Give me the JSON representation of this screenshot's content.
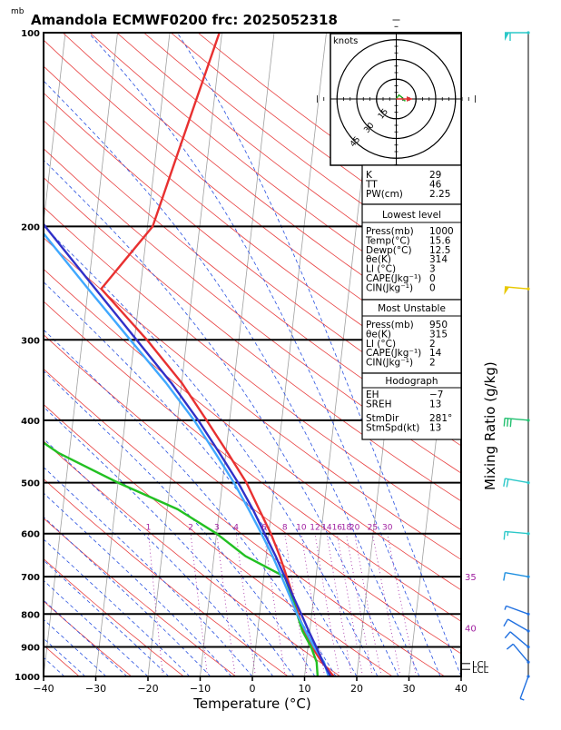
{
  "chart_data": {
    "type": "line",
    "title": "Amandola ECMWF0200  frc: 2025052318",
    "pressure_unit": "mb",
    "xlabel": "Temperature (°C)",
    "ylabel_right": "Mixing Ratio (g/kg)",
    "x_ticks": [
      "−40",
      "−30",
      "−20",
      "−10",
      "0",
      "10",
      "20",
      "30",
      "40"
    ],
    "x_tick_values": [
      -40,
      -30,
      -20,
      -10,
      0,
      10,
      20,
      30,
      40
    ],
    "xlim": [
      -40,
      40
    ],
    "y_ticks": [
      "100",
      "200",
      "300",
      "400",
      "500",
      "600",
      "700",
      "800",
      "900",
      "1000"
    ],
    "y_tick_values": [
      100,
      200,
      300,
      400,
      500,
      600,
      700,
      800,
      900,
      1000
    ],
    "ylim": [
      1000,
      100
    ],
    "y_scale": "log",
    "mixing_ratio_labels": [
      "1",
      "2",
      "3",
      "4",
      "6",
      "8",
      "10",
      "12",
      "14",
      "16",
      "18",
      "20",
      "25",
      "30"
    ],
    "mixing_ratio_values": [
      1,
      2,
      3,
      4,
      6,
      8,
      10,
      12,
      14,
      16,
      18,
      20,
      25,
      30
    ],
    "side_labels": [
      {
        "text": "35",
        "pressure": 700
      },
      {
        "text": "40",
        "pressure": 840
      }
    ],
    "lcl_labels": [
      "LCL",
      "LCL"
    ],
    "series": [
      {
        "key": "temperature",
        "color": "#e83030",
        "points": [
          [
            1000,
            15.6
          ],
          [
            950,
            13.0
          ],
          [
            900,
            10.8
          ],
          [
            850,
            9.0
          ],
          [
            800,
            7.4
          ],
          [
            750,
            6.0
          ],
          [
            700,
            4.4
          ],
          [
            650,
            2.6
          ],
          [
            600,
            0.4
          ],
          [
            550,
            -2.4
          ],
          [
            500,
            -5.4
          ],
          [
            450,
            -9.6
          ],
          [
            400,
            -14.4
          ],
          [
            350,
            -20.0
          ],
          [
            300,
            -27.6
          ],
          [
            250,
            -37.5
          ],
          [
            200,
            -29.0
          ],
          [
            150,
            -25.5
          ],
          [
            100,
            -20.5
          ]
        ]
      },
      {
        "key": "dewpoint",
        "color": "#22c022",
        "points": [
          [
            1000,
            12.5
          ],
          [
            950,
            12.0
          ],
          [
            900,
            10.6
          ],
          [
            850,
            8.6
          ],
          [
            800,
            7.2
          ],
          [
            750,
            5.8
          ],
          [
            700,
            4.0
          ],
          [
            650,
            -4.0
          ],
          [
            600,
            -10.0
          ],
          [
            550,
            -18.0
          ],
          [
            500,
            -30.0
          ],
          [
            450,
            -42.0
          ],
          [
            400,
            -52.0
          ],
          [
            350,
            -59.0
          ],
          [
            300,
            -66.0
          ],
          [
            250,
            -73.0
          ],
          [
            200,
            -80.0
          ],
          [
            150,
            -87.0
          ],
          [
            100,
            -94.0
          ]
        ]
      },
      {
        "key": "parcel_virtual",
        "color": "#40a8ff",
        "points": [
          [
            1000,
            14.6
          ],
          [
            950,
            13.4
          ],
          [
            900,
            11.2
          ],
          [
            850,
            9.2
          ],
          [
            800,
            7.2
          ],
          [
            750,
            5.4
          ],
          [
            700,
            3.4
          ],
          [
            650,
            1.2
          ],
          [
            600,
            -1.4
          ],
          [
            550,
            -4.4
          ],
          [
            500,
            -7.8
          ],
          [
            450,
            -12.0
          ],
          [
            400,
            -16.8
          ],
          [
            350,
            -23.0
          ],
          [
            300,
            -30.8
          ],
          [
            250,
            -40.0
          ],
          [
            200,
            -51.0
          ],
          [
            150,
            -63.0
          ],
          [
            100,
            -79.0
          ]
        ]
      },
      {
        "key": "parcel",
        "color": "#3030c8",
        "points": [
          [
            1000,
            15.0
          ],
          [
            950,
            13.2
          ],
          [
            900,
            11.6
          ],
          [
            850,
            9.8
          ],
          [
            800,
            8.0
          ],
          [
            750,
            6.0
          ],
          [
            700,
            4.0
          ],
          [
            650,
            1.8
          ],
          [
            600,
            -0.8
          ],
          [
            550,
            -3.6
          ],
          [
            500,
            -7.0
          ],
          [
            450,
            -11.2
          ],
          [
            400,
            -16.0
          ],
          [
            350,
            -22.0
          ],
          [
            300,
            -29.6
          ],
          [
            250,
            -38.6
          ],
          [
            200,
            -49.6
          ],
          [
            150,
            -62.0
          ],
          [
            100,
            -78.0
          ]
        ]
      }
    ],
    "hodograph": {
      "unit_label": "knots",
      "ring_labels": [
        "15",
        "30",
        "45"
      ],
      "ring_values": [
        15,
        30,
        45
      ],
      "trace": [
        [
          0.0,
          0.0
        ],
        [
          2.0,
          3.0
        ],
        [
          4.0,
          1.5
        ],
        [
          6.0,
          -1.0
        ],
        [
          7.0,
          -1.5
        ]
      ],
      "storm_motion": [
        5.5,
        0.0
      ]
    },
    "indices": [
      {
        "label": "K",
        "value": "29"
      },
      {
        "label": "TT",
        "value": "46"
      },
      {
        "label": "PW(cm)",
        "value": "2.25"
      }
    ],
    "lowest_level": {
      "header": "Lowest level",
      "rows": [
        {
          "label": "Press(mb)",
          "value": "1000"
        },
        {
          "label": "Temp(°C)",
          "value": "15.6"
        },
        {
          "label": "Dewp(°C)",
          "value": "12.5"
        },
        {
          "label": "θe(K)",
          "value": "314"
        },
        {
          "label": "LI (°C)",
          "value": "3"
        },
        {
          "label": "CAPE(Jkg⁻¹)",
          "value": "0"
        },
        {
          "label": "CIN(Jkg⁻¹)",
          "value": "0"
        }
      ]
    },
    "most_unstable": {
      "header": "Most Unstable",
      "rows": [
        {
          "label": "Press(mb)",
          "value": "950"
        },
        {
          "label": "θe(K)",
          "value": "315"
        },
        {
          "label": "LI (°C)",
          "value": "2"
        },
        {
          "label": "CAPE(Jkg⁻¹)",
          "value": "14"
        },
        {
          "label": "CIN(Jkg⁻¹)",
          "value": "2"
        }
      ]
    },
    "hodograph_box": {
      "header": "Hodograph",
      "rows": [
        {
          "label": "EH",
          "value": "−7"
        },
        {
          "label": "SREH",
          "value": "13"
        },
        {
          "label": "StmDir",
          "value": "281°"
        },
        {
          "label": "StmSpd(kt)",
          "value": "13"
        }
      ]
    },
    "wind_barbs": [
      {
        "pressure": 100,
        "color": "#2cc8c8",
        "dir": 270,
        "speed": 60
      },
      {
        "pressure": 250,
        "color": "#e8c800",
        "dir": 275,
        "speed": 50
      },
      {
        "pressure": 400,
        "color": "#22c070",
        "dir": 275,
        "speed": 30
      },
      {
        "pressure": 500,
        "color": "#2cc8c8",
        "dir": 280,
        "speed": 20
      },
      {
        "pressure": 600,
        "color": "#2cc8c8",
        "dir": 275,
        "speed": 15
      },
      {
        "pressure": 700,
        "color": "#2090e0",
        "dir": 280,
        "speed": 10
      },
      {
        "pressure": 800,
        "color": "#2070e0",
        "dir": 290,
        "speed": 5
      },
      {
        "pressure": 850,
        "color": "#2070e0",
        "dir": 300,
        "speed": 10
      },
      {
        "pressure": 900,
        "color": "#2070e0",
        "dir": 310,
        "speed": 10
      },
      {
        "pressure": 950,
        "color": "#2070e0",
        "dir": 320,
        "speed": 10
      },
      {
        "pressure": 1000,
        "color": "#2070e0",
        "dir": 200,
        "speed": 5
      }
    ]
  }
}
